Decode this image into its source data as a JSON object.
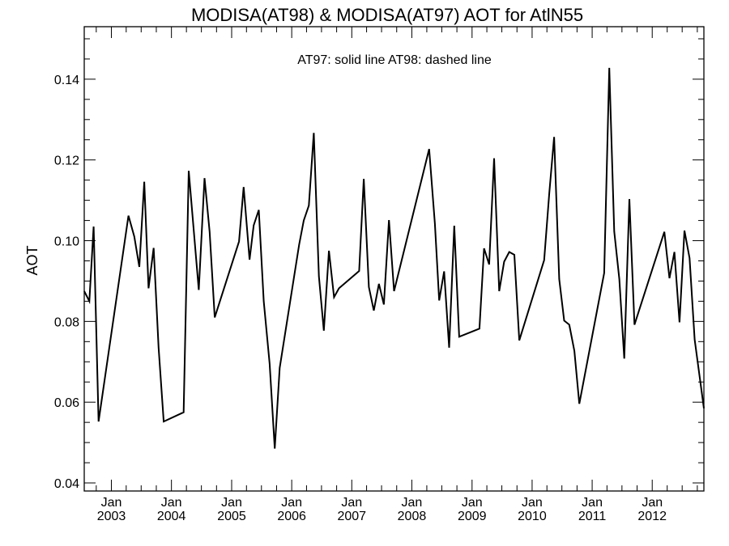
{
  "chart_data": {
    "type": "line",
    "title": "MODISA(AT98) & MODISA(AT97)  AOT for AtlN55",
    "subtitle": "AT97: solid line   AT98: dashed line",
    "xlabel": "",
    "ylabel": "AOT",
    "xlim": [
      "2002-07-20",
      "2012-11-10"
    ],
    "ylim": [
      0.038,
      0.153
    ],
    "yticks": [
      0.04,
      0.06,
      0.08,
      0.1,
      0.12,
      0.14
    ],
    "ytick_labels": [
      "0.04",
      "0.06",
      "0.08",
      "0.10",
      "0.12",
      "0.14"
    ],
    "xticks": [
      {
        "date": "2003-01-01",
        "line1": "Jan",
        "line2": "2003"
      },
      {
        "date": "2004-01-01",
        "line1": "Jan",
        "line2": "2004"
      },
      {
        "date": "2005-01-01",
        "line1": "Jan",
        "line2": "2005"
      },
      {
        "date": "2006-01-01",
        "line1": "Jan",
        "line2": "2006"
      },
      {
        "date": "2007-01-01",
        "line1": "Jan",
        "line2": "2007"
      },
      {
        "date": "2008-01-01",
        "line1": "Jan",
        "line2": "2008"
      },
      {
        "date": "2009-01-01",
        "line1": "Jan",
        "line2": "2009"
      },
      {
        "date": "2010-01-01",
        "line1": "Jan",
        "line2": "2010"
      },
      {
        "date": "2011-01-01",
        "line1": "Jan",
        "line2": "2011"
      },
      {
        "date": "2012-01-01",
        "line1": "Jan",
        "line2": "2012"
      }
    ],
    "grid": false,
    "series": [
      {
        "name": "AT97",
        "style": "solid",
        "color": "#000000",
        "x": [
          "2002-07-20",
          "2002-08-20",
          "2002-09-15",
          "2002-10-15",
          "2003-04-15",
          "2003-05-20",
          "2003-06-20",
          "2003-07-20",
          "2003-08-15",
          "2003-09-15",
          "2003-10-15",
          "2003-11-15",
          "2004-03-15",
          "2004-04-15",
          "2004-06-15",
          "2004-07-20",
          "2004-08-20",
          "2004-09-20",
          "2005-02-15",
          "2005-03-15",
          "2005-04-20",
          "2005-05-15",
          "2005-06-15",
          "2005-07-15",
          "2005-08-20",
          "2005-09-20",
          "2005-10-20",
          "2006-02-15",
          "2006-03-15",
          "2006-04-15",
          "2006-05-15",
          "2006-06-15",
          "2006-07-15",
          "2006-08-15",
          "2006-09-15",
          "2006-10-15",
          "2007-02-15",
          "2007-03-15",
          "2007-04-15",
          "2007-05-15",
          "2007-06-15",
          "2007-07-15",
          "2007-08-15",
          "2007-09-15",
          "2008-04-15",
          "2008-05-20",
          "2008-06-15",
          "2008-07-15",
          "2008-08-15",
          "2008-09-15",
          "2008-10-15",
          "2009-02-15",
          "2009-03-15",
          "2009-04-15",
          "2009-05-15",
          "2009-06-15",
          "2009-07-15",
          "2009-08-15",
          "2009-09-15",
          "2009-10-15",
          "2010-03-15",
          "2010-04-15",
          "2010-05-15",
          "2010-06-15",
          "2010-07-15",
          "2010-08-15",
          "2010-09-15",
          "2010-10-15",
          "2011-03-15",
          "2011-04-15",
          "2011-05-15",
          "2011-06-15",
          "2011-07-15",
          "2011-08-15",
          "2011-09-15",
          "2012-03-15",
          "2012-04-15",
          "2012-05-15",
          "2012-06-15",
          "2012-07-15",
          "2012-08-15",
          "2012-09-15",
          "2012-11-10"
        ],
        "y": [
          0.0875,
          0.085,
          0.1035,
          0.0552,
          0.1062,
          0.101,
          0.0935,
          0.1146,
          0.0882,
          0.0982,
          0.0735,
          0.0552,
          0.0575,
          0.1173,
          0.0878,
          0.1155,
          0.1022,
          0.081,
          0.0998,
          0.1133,
          0.0953,
          0.1038,
          0.1076,
          0.085,
          0.0695,
          0.0485,
          0.0685,
          0.099,
          0.105,
          0.1087,
          0.1267,
          0.0912,
          0.0777,
          0.0975,
          0.086,
          0.0882,
          0.0925,
          0.1153,
          0.0885,
          0.0827,
          0.0893,
          0.0842,
          0.1051,
          0.0875,
          0.1227,
          0.1042,
          0.0852,
          0.0924,
          0.0735,
          0.1037,
          0.0762,
          0.0782,
          0.0981,
          0.0941,
          0.1204,
          0.0875,
          0.0948,
          0.0972,
          0.0965,
          0.0753,
          0.0952,
          0.1117,
          0.1257,
          0.0905,
          0.0802,
          0.0792,
          0.0727,
          0.0596,
          0.092,
          0.1428,
          0.1023,
          0.0905,
          0.0708,
          0.1103,
          0.0792,
          0.1022,
          0.0907,
          0.0972,
          0.0798,
          0.1025,
          0.0957,
          0.0755,
          0.0585
        ]
      }
    ]
  }
}
